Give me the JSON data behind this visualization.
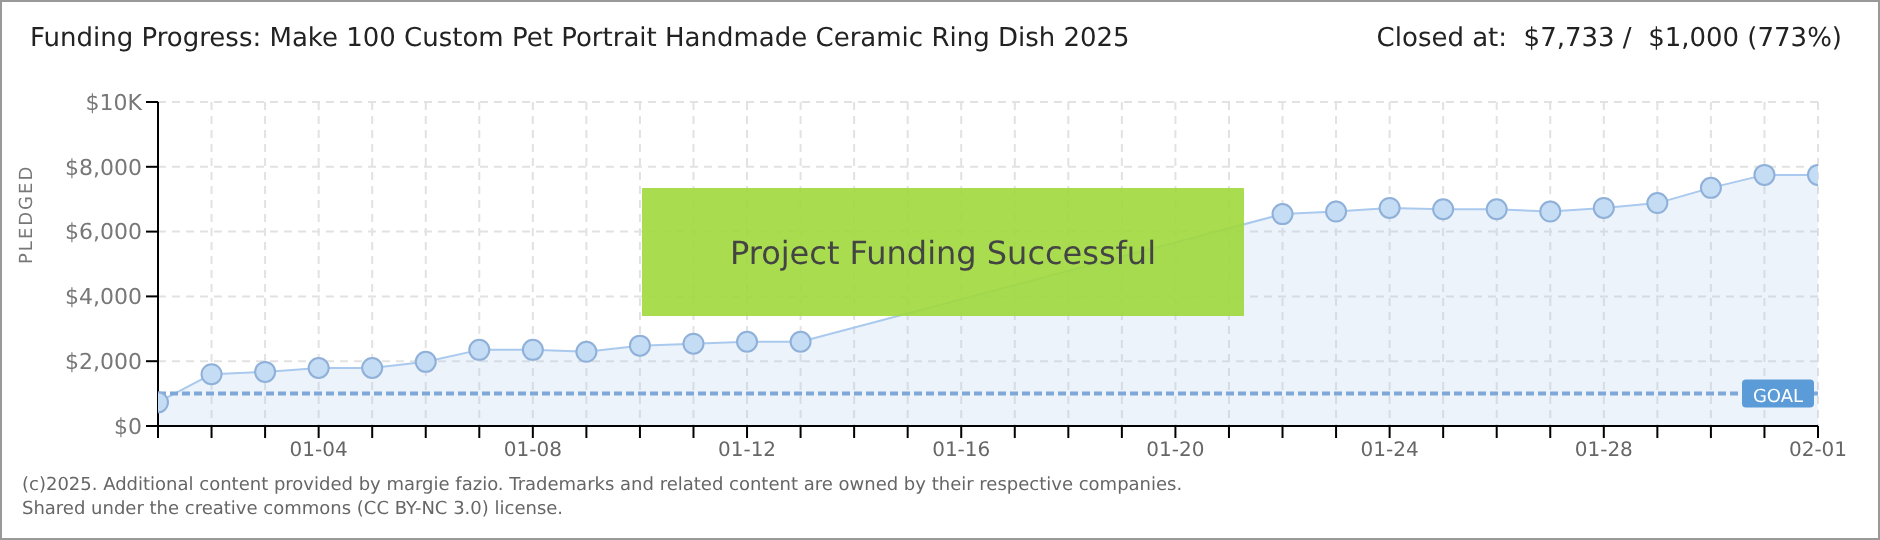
{
  "chart_data": {
    "type": "area",
    "title": "Funding Progress: Make 100 Custom Pet Portrait Handmade Ceramic Ring Dish 2025",
    "subtitle": "Closed at:  $7,733 /  $1,000 (773%)",
    "ylabel": "PLEDGED",
    "categories": [
      null,
      null,
      null,
      "01-04",
      null,
      null,
      null,
      "01-08",
      null,
      null,
      null,
      "01-12",
      null,
      null,
      null,
      "01-16",
      null,
      null,
      null,
      "01-20",
      null,
      null,
      null,
      "01-24",
      null,
      null,
      null,
      "01-28",
      null,
      null,
      null,
      "02-01"
    ],
    "series": [
      {
        "color": "#a9c9ee",
        "values": [
          730,
          1600,
          1670,
          1790,
          1790,
          1980,
          2350,
          2350,
          2290,
          2480,
          2540,
          2600,
          2600,
          null,
          null,
          null,
          null,
          null,
          null,
          null,
          null,
          6540,
          6620,
          6730,
          6690,
          6690,
          6620,
          6730,
          6880,
          7350,
          7750,
          7750
        ]
      }
    ],
    "ylim": [
      0,
      10000
    ],
    "yticks": [
      {
        "value": 0,
        "label": "$0"
      },
      {
        "value": 2000,
        "label": "$2,000"
      },
      {
        "value": 4000,
        "label": "$4,000"
      },
      {
        "value": 6000,
        "label": "$6,000"
      },
      {
        "value": 8000,
        "label": "$8,000"
      },
      {
        "value": 10000,
        "label": "$10K"
      }
    ],
    "grid": true,
    "marker": "circle",
    "legend": false,
    "ref_lines": [
      {
        "axis": "y",
        "value": 1000,
        "label": "GOAL",
        "color": "#7fa8d8",
        "line_style": "dashed"
      }
    ],
    "annotations": [
      "Project Funding Successful",
      "(c)2025. Additional content provided by margie fazio. Trademarks and related content are owned by their respective companies.",
      "Shared under the creative commons (CC BY-NC 3.0) license."
    ]
  }
}
